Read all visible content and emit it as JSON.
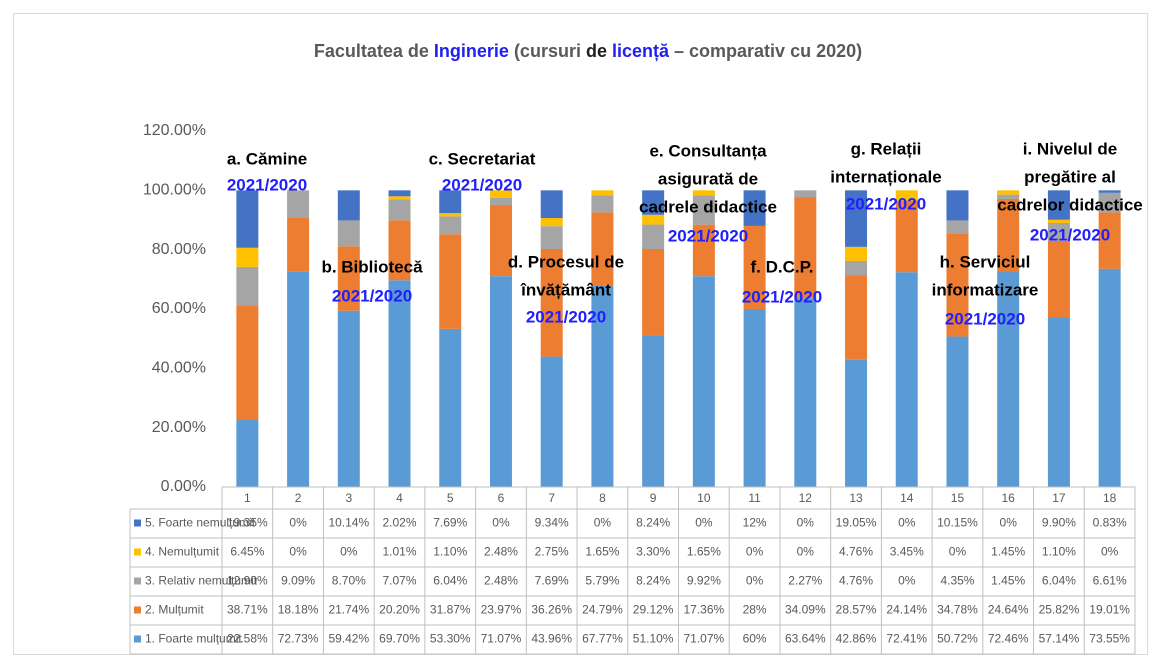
{
  "chart_data": {
    "type": "stacked_bar",
    "title_parts": [
      {
        "text": "Facultatea de ",
        "color": "#595959"
      },
      {
        "text": "Inginerie",
        "color": "#2020f0"
      },
      {
        "text": " (cursuri ",
        "color": "#595959"
      },
      {
        "text": "de ",
        "color": "#202020"
      },
      {
        "text": "licență",
        "color": "#2020f0"
      },
      {
        "text": " – comparativ cu 2020)",
        "color": "#595959"
      }
    ],
    "categories": [
      "1",
      "2",
      "3",
      "4",
      "5",
      "6",
      "7",
      "8",
      "9",
      "10",
      "11",
      "12",
      "13",
      "14",
      "15",
      "16",
      "17",
      "18"
    ],
    "series": [
      {
        "name": "5. Foarte nemulțumit",
        "color": "#4472c4",
        "values": [
          19.35,
          0,
          10.14,
          2.02,
          7.69,
          0,
          9.34,
          0,
          8.24,
          0,
          12,
          0,
          19.05,
          0,
          10.15,
          0,
          9.9,
          0.83
        ],
        "value_labels": [
          "19.35%",
          "0%",
          "10.14%",
          "2.02%",
          "7.69%",
          "0%",
          "9.34%",
          "0%",
          "8.24%",
          "0%",
          "12%",
          "0%",
          "19.05%",
          "0%",
          "10.15%",
          "0%",
          "9.90%",
          "0.83%"
        ]
      },
      {
        "name": "4. Nemulțumit",
        "color": "#ffc000",
        "values": [
          6.45,
          0,
          0,
          1.01,
          1.1,
          2.48,
          2.75,
          1.65,
          3.3,
          1.65,
          0,
          0,
          4.76,
          3.45,
          0,
          1.45,
          1.1,
          0
        ],
        "value_labels": [
          "6.45%",
          "0%",
          "0%",
          "1.01%",
          "1.10%",
          "2.48%",
          "2.75%",
          "1.65%",
          "3.30%",
          "1.65%",
          "0%",
          "0%",
          "4.76%",
          "3.45%",
          "0%",
          "1.45%",
          "1.10%",
          "0%"
        ]
      },
      {
        "name": "3. Relativ nemulțumit",
        "color": "#a5a5a5",
        "values": [
          12.9,
          9.09,
          8.7,
          7.07,
          6.04,
          2.48,
          7.69,
          5.79,
          8.24,
          9.92,
          0,
          2.27,
          4.76,
          0,
          4.35,
          1.45,
          6.04,
          6.61
        ],
        "value_labels": [
          "12.90%",
          "9.09%",
          "8.70%",
          "7.07%",
          "6.04%",
          "2.48%",
          "7.69%",
          "5.79%",
          "8.24%",
          "9.92%",
          "0%",
          "2.27%",
          "4.76%",
          "0%",
          "4.35%",
          "1.45%",
          "6.04%",
          "6.61%"
        ]
      },
      {
        "name": "2. Mulțumit",
        "color": "#ed7d31",
        "values": [
          38.71,
          18.18,
          21.74,
          20.2,
          31.87,
          23.97,
          36.26,
          24.79,
          29.12,
          17.36,
          28,
          34.09,
          28.57,
          24.14,
          34.78,
          24.64,
          25.82,
          19.01
        ],
        "value_labels": [
          "38.71%",
          "18.18%",
          "21.74%",
          "20.20%",
          "31.87%",
          "23.97%",
          "36.26%",
          "24.79%",
          "29.12%",
          "17.36%",
          "28%",
          "34.09%",
          "28.57%",
          "24.14%",
          "34.78%",
          "24.64%",
          "25.82%",
          "19.01%"
        ]
      },
      {
        "name": "1. Foarte mulțumit",
        "color": "#5b9bd5",
        "values": [
          22.58,
          72.73,
          59.42,
          69.7,
          53.3,
          71.07,
          43.96,
          67.77,
          51.1,
          71.07,
          60,
          63.64,
          42.86,
          72.41,
          50.72,
          72.46,
          57.14,
          73.55
        ],
        "value_labels": [
          "22.58%",
          "72.73%",
          "59.42%",
          "69.70%",
          "53.30%",
          "71.07%",
          "43.96%",
          "67.77%",
          "51.10%",
          "71.07%",
          "60%",
          "63.64%",
          "42.86%",
          "72.41%",
          "50.72%",
          "72.46%",
          "57.14%",
          "73.55%"
        ]
      }
    ],
    "ylim": [
      0,
      120
    ],
    "yticks": [
      {
        "value": 0,
        "label": "0.00%"
      },
      {
        "value": 20,
        "label": "20.00%"
      },
      {
        "value": 40,
        "label": "40.00%"
      },
      {
        "value": 60,
        "label": "60.00%"
      },
      {
        "value": 80,
        "label": "80.00%"
      },
      {
        "value": 100,
        "label": "100.00%"
      },
      {
        "value": 120,
        "label": "120.00%"
      }
    ],
    "annotations": [
      {
        "lines": [
          "a. Cămine"
        ],
        "period": "2021/2020"
      },
      {
        "lines": [
          "b. Bibliotecă"
        ],
        "period": "2021/2020"
      },
      {
        "lines": [
          "c. Secretariat"
        ],
        "period": "2021/2020"
      },
      {
        "lines": [
          "d. Procesul de",
          "învățământ"
        ],
        "period": "2021/2020"
      },
      {
        "lines": [
          "e. Consultanța",
          "asigurată de",
          "cadrele didactice"
        ],
        "period": "2021/2020"
      },
      {
        "lines": [
          "f. D.C.P."
        ],
        "period": "2021/2020"
      },
      {
        "lines": [
          "g. Relații",
          "internaționale"
        ],
        "period": "2021/2020"
      },
      {
        "lines": [
          "h. Serviciul",
          "informatizare"
        ],
        "period": "2021/2020"
      },
      {
        "lines": [
          "i. Nivelul de",
          "pregătire al",
          "cadrelor didactice"
        ],
        "period": "2021/2020"
      }
    ]
  }
}
